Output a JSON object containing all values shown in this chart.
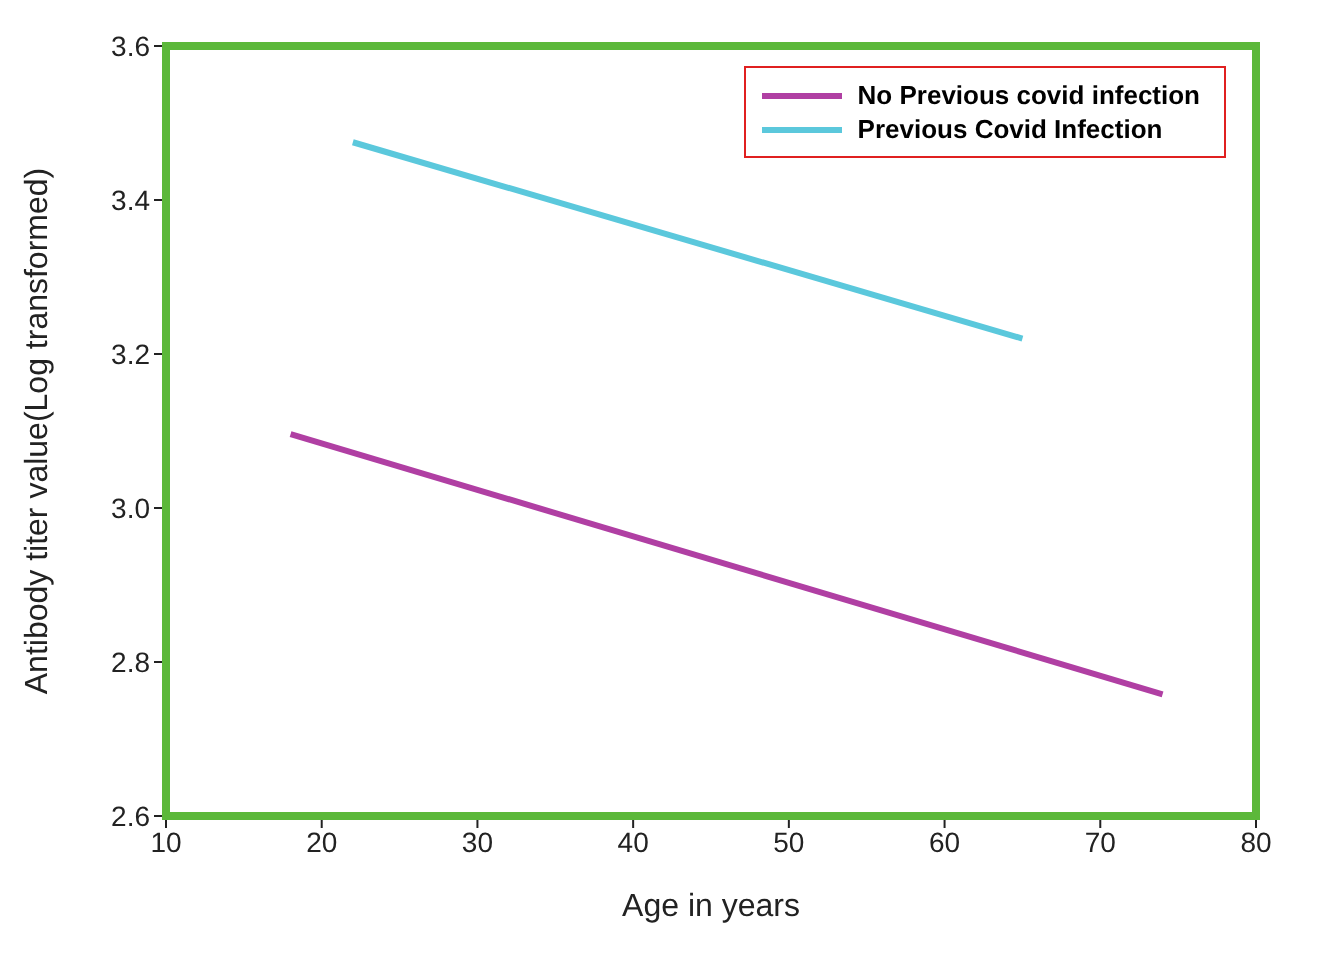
{
  "chart_data": {
    "type": "line",
    "xlabel": "Age in years",
    "ylabel": "Antibody titer value(Log transformed)",
    "xlim": [
      10,
      80
    ],
    "xticks": [
      10,
      20,
      30,
      40,
      50,
      60,
      70,
      80
    ],
    "ylim": [
      2.6,
      3.6
    ],
    "yticks": [
      {
        "value": 2.6,
        "label": "2.6"
      },
      {
        "value": 2.8,
        "label": "2.8"
      },
      {
        "value": 3.0,
        "label": "3.0"
      },
      {
        "value": 3.2,
        "label": "3.2"
      },
      {
        "value": 3.4,
        "label": "3.4"
      },
      {
        "value": 3.6,
        "label": "3.6"
      }
    ],
    "grid": false,
    "legend": "top right",
    "marker": "none",
    "line_style": "solid",
    "series": [
      {
        "name": "No Previous covid infection",
        "color": "#b03fa3",
        "x": [
          18,
          74
        ],
        "values": [
          3.096,
          2.758
        ]
      },
      {
        "name": "Previous Covid Infection",
        "color": "#5bc8dc",
        "x": [
          22,
          65
        ],
        "values": [
          3.475,
          3.22
        ]
      }
    ]
  }
}
